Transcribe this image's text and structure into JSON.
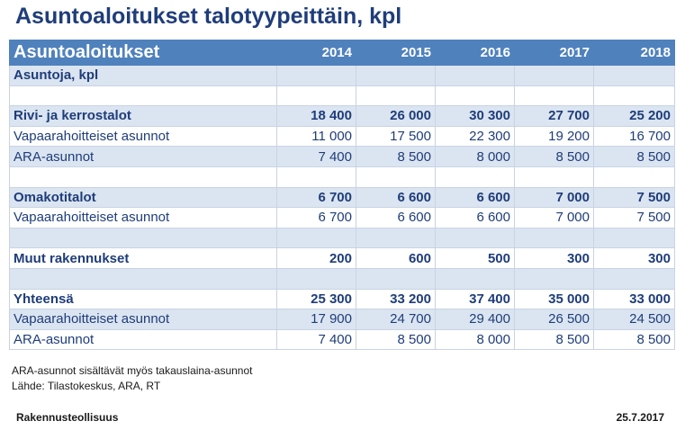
{
  "title": "Asuntoaloitukset talotyypeittäin, kpl",
  "table": {
    "header": {
      "label": "Asuntoaloitukset",
      "years": [
        "2014",
        "2015",
        "2016",
        "2017",
        "2018"
      ]
    },
    "rows": [
      {
        "label": "Asuntoja, kpl",
        "values": [
          "",
          "",
          "",
          "",
          ""
        ],
        "style": "section"
      },
      {
        "label": "",
        "values": [
          "",
          "",
          "",
          "",
          ""
        ],
        "style": "blank"
      },
      {
        "label": "Rivi- ja kerrostalot",
        "values": [
          "18 400",
          "26 000",
          "30 300",
          "27 700",
          "25 200"
        ],
        "style": "total"
      },
      {
        "label": "Vapaarahoitteiset asunnot",
        "values": [
          "11 000",
          "17 500",
          "22 300",
          "19 200",
          "16 700"
        ],
        "style": "sub"
      },
      {
        "label": "ARA-asunnot",
        "values": [
          "7 400",
          "8 500",
          "8 000",
          "8 500",
          "8 500"
        ],
        "style": "sub"
      },
      {
        "label": "",
        "values": [
          "",
          "",
          "",
          "",
          ""
        ],
        "style": "blank"
      },
      {
        "label": "Omakotitalot",
        "values": [
          "6 700",
          "6 600",
          "6 600",
          "7 000",
          "7 500"
        ],
        "style": "total"
      },
      {
        "label": "Vapaarahoitteiset asunnot",
        "values": [
          "6 700",
          "6 600",
          "6 600",
          "7 000",
          "7 500"
        ],
        "style": "sub"
      },
      {
        "label": "",
        "values": [
          "",
          "",
          "",
          "",
          ""
        ],
        "style": "blank"
      },
      {
        "label": "Muut rakennukset",
        "values": [
          "200",
          "600",
          "500",
          "300",
          "300"
        ],
        "style": "total"
      },
      {
        "label": "",
        "values": [
          "",
          "",
          "",
          "",
          ""
        ],
        "style": "blank"
      },
      {
        "label": "Yhteensä",
        "values": [
          "25 300",
          "33 200",
          "37 400",
          "35 000",
          "33 000"
        ],
        "style": "total"
      },
      {
        "label": "Vapaarahoitteiset asunnot",
        "values": [
          "17 900",
          "24 700",
          "29 400",
          "26 500",
          "24 500"
        ],
        "style": "sub"
      },
      {
        "label": "ARA-asunnot",
        "values": [
          "7 400",
          "8 500",
          "8 000",
          "8 500",
          "8 500"
        ],
        "style": "sub"
      }
    ]
  },
  "notes": [
    "ARA-asunnot sisältävät myös takauslaina-asunnot",
    "Lähde: Tilastokeskus, ARA, RT"
  ],
  "footer": {
    "left": "Rakennusteollisuus",
    "right": "25.7.2017"
  },
  "colors": {
    "title": "#1f3d7a",
    "header_bg": "#4f81bd",
    "shaded_row": "#dbe5f1",
    "text": "#1f3d7a"
  }
}
